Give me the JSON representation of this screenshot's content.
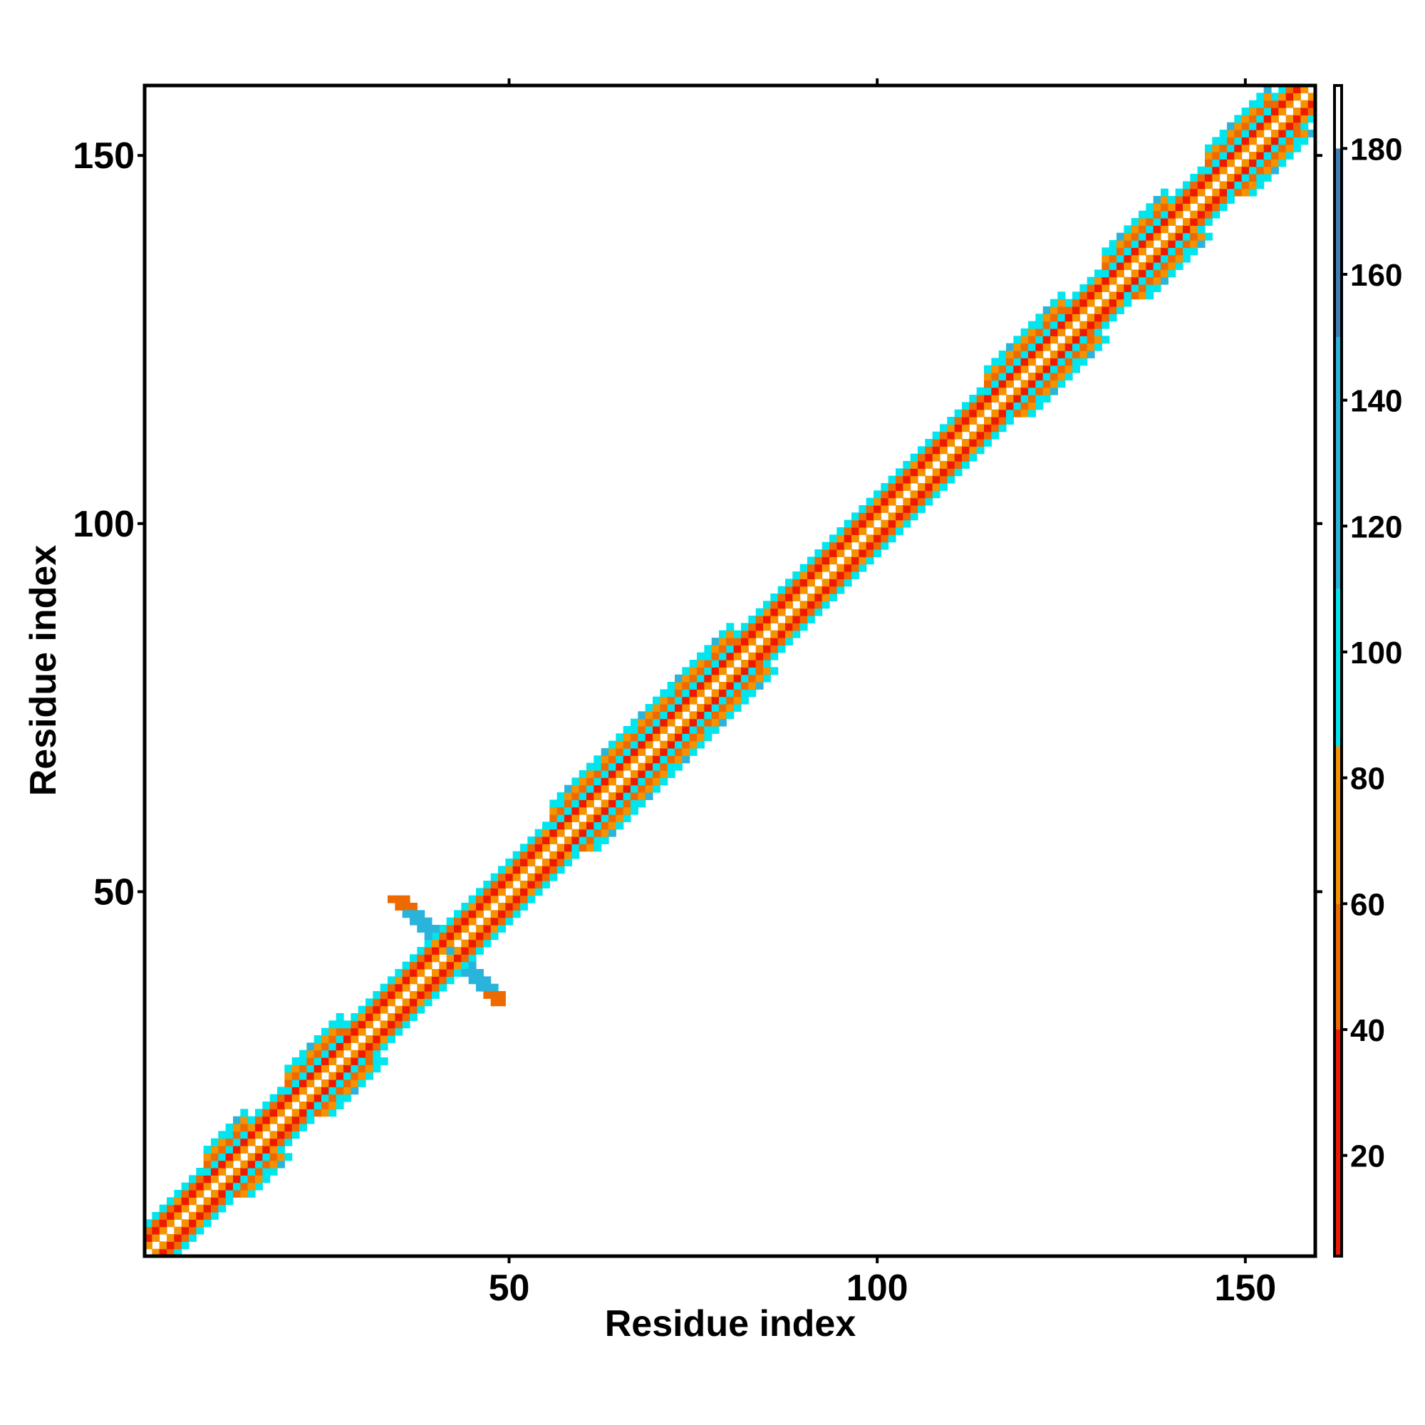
{
  "chart_data": {
    "type": "heatmap",
    "title": "",
    "xlabel": "Residue index",
    "ylabel": "Residue index",
    "xlim": [
      1,
      159
    ],
    "ylim": [
      1,
      159
    ],
    "xticks": [
      50,
      100,
      150
    ],
    "yticks": [
      50,
      100,
      150
    ],
    "colorbar": {
      "range": [
        4,
        190
      ],
      "ticks": [
        20,
        40,
        60,
        80,
        100,
        120,
        140,
        160,
        180
      ],
      "bands": [
        {
          "from": 4,
          "to": 40,
          "color": "#ee1a00"
        },
        {
          "from": 40,
          "to": 60,
          "color": "#ee6a00"
        },
        {
          "from": 60,
          "to": 85,
          "color": "#f59200"
        },
        {
          "from": 85,
          "to": 110,
          "color": "#00e5ee"
        },
        {
          "from": 110,
          "to": 150,
          "color": "#2ab4dc"
        },
        {
          "from": 150,
          "to": 180,
          "color": "#3f7fb5"
        },
        {
          "from": 180,
          "to": 190,
          "color": "#ffffff"
        }
      ]
    },
    "grid": false,
    "legend": "colorbar-right",
    "description_values": {
      "diagonal_offset_0": 0,
      "offset_1": 70,
      "offset_2": 30,
      "offset_3": 95,
      "offset_4": 50,
      "offset_5": 80,
      "offset_6": 105
    },
    "helix_ranges": [
      [
        9,
        14
      ],
      [
        20,
        27
      ],
      [
        56,
        80
      ],
      [
        115,
        125
      ],
      [
        131,
        139
      ],
      [
        145,
        153
      ]
    ],
    "cross_feature": {
      "center": [
        42,
        42
      ],
      "residue_range": [
        33,
        49
      ],
      "value": 130,
      "edge_value": 45
    }
  }
}
